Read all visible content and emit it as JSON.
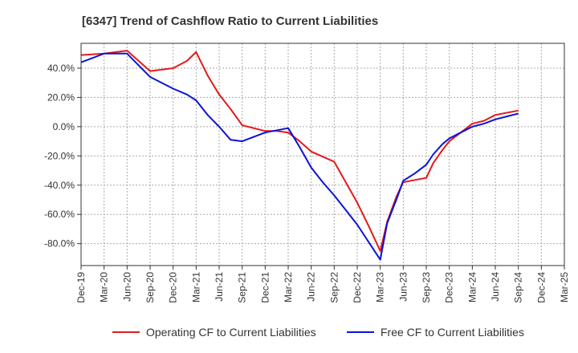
{
  "chart_data": {
    "type": "line",
    "title": "[6347]  Trend of Cashflow Ratio to Current Liabilities",
    "xlabel": "",
    "ylabel": "",
    "x_ticks": [
      "Dec-19",
      "Mar-20",
      "Jun-20",
      "Sep-20",
      "Dec-20",
      "Mar-21",
      "Jun-21",
      "Sep-21",
      "Dec-21",
      "Mar-22",
      "Jun-22",
      "Sep-22",
      "Dec-22",
      "Mar-23",
      "Jun-23",
      "Sep-23",
      "Dec-23",
      "Mar-24",
      "Jun-24",
      "Sep-24",
      "Dec-24",
      "Mar-25"
    ],
    "y_ticks": [
      40,
      20,
      0,
      -20,
      -40,
      -60,
      -80
    ],
    "y_tick_labels": [
      "40.0%",
      "20.0%",
      "0.0%",
      "-20.0%",
      "-40.0%",
      "-60.0%",
      "-80.0%"
    ],
    "ylim": [
      -95,
      57
    ],
    "grid": true,
    "legend_position": "bottom",
    "series": [
      {
        "name": "Operating CF to Current Liabilities",
        "color": "#e31a1c",
        "x": [
          0,
          1,
          2,
          3,
          4,
          4.6,
          5,
          5.5,
          6,
          6.5,
          7,
          8,
          8.5,
          9,
          9.5,
          10,
          11,
          11.5,
          12,
          12.5,
          13,
          13.3,
          13.7,
          14,
          15,
          15.3,
          15.7,
          16,
          16.5,
          17,
          17.5,
          18,
          19
        ],
        "values": [
          49,
          50,
          52,
          38,
          40,
          45,
          51,
          35,
          22,
          12,
          1,
          -3,
          -3,
          -4,
          -10,
          -17,
          -24,
          -38,
          -52,
          -68,
          -85,
          -65,
          -48,
          -38,
          -35,
          -25,
          -16,
          -10,
          -4,
          2,
          4,
          8,
          11
        ]
      },
      {
        "name": "Free CF to Current Liabilities",
        "color": "#0a14d8",
        "x": [
          0,
          1,
          2,
          3,
          4,
          4.6,
          5,
          5.5,
          6,
          6.5,
          7,
          8,
          9,
          9.5,
          10,
          10.5,
          11,
          11.5,
          12,
          12.5,
          13,
          13.3,
          13.7,
          14,
          14.5,
          15,
          15.3,
          15.7,
          16,
          16.5,
          17,
          17.5,
          18,
          19
        ],
        "values": [
          44,
          50,
          50,
          34,
          26,
          22,
          18,
          8,
          0,
          -9,
          -10,
          -4,
          -1,
          -14,
          -28,
          -38,
          -47,
          -57,
          -67,
          -79,
          -91,
          -66,
          -50,
          -37,
          -32,
          -26,
          -19,
          -12,
          -8,
          -4,
          0,
          2,
          5,
          9
        ]
      }
    ]
  }
}
